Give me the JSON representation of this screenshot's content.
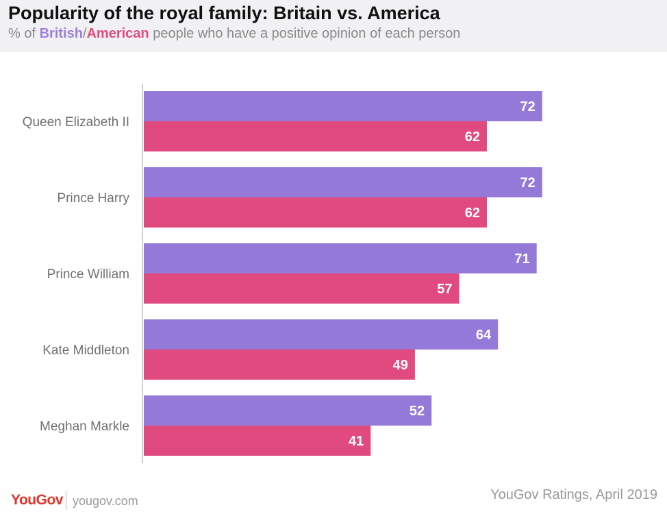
{
  "header": {
    "title": "Popularity of the royal family: Britain vs. America",
    "subtitle_prefix": "% of ",
    "subtitle_british": "British",
    "subtitle_slash": "/",
    "subtitle_american": "American",
    "subtitle_suffix": " people who have a positive opinion of each person"
  },
  "colors": {
    "british": "#9479d9",
    "american": "#e04a7e",
    "axis": "#cfcfcf",
    "header_bg": "#f1f0f3"
  },
  "chart_data": {
    "type": "bar",
    "orientation": "horizontal",
    "title": "Popularity of the royal family: Britain vs. America",
    "subtitle": "% of British/American people who have a positive opinion of each person",
    "categories": [
      "Queen Elizabeth II",
      "Prince Harry",
      "Prince William",
      "Kate Middleton",
      "Meghan Markle"
    ],
    "series": [
      {
        "name": "British",
        "values": [
          72,
          72,
          71,
          64,
          52
        ]
      },
      {
        "name": "American",
        "values": [
          62,
          62,
          57,
          49,
          41
        ]
      }
    ],
    "xlim": [
      0,
      100
    ],
    "grid": false,
    "legend": "subtitle"
  },
  "footer": {
    "logo": "YouGov",
    "site": "yougov.com",
    "source": "YouGov Ratings, April 2019"
  }
}
